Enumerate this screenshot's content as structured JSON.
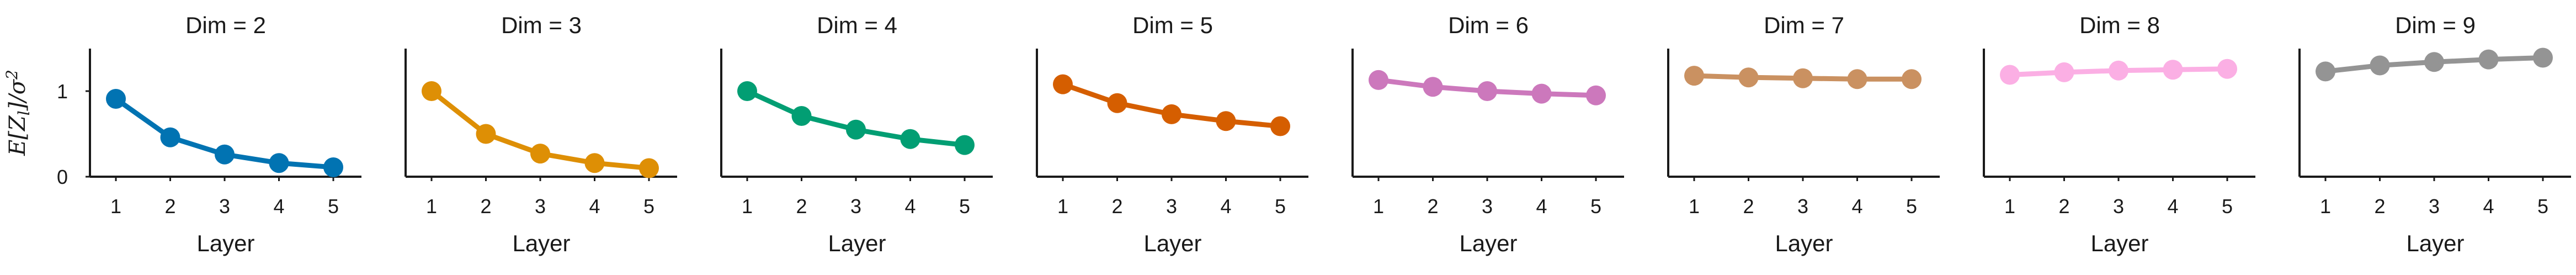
{
  "chart_data": [
    {
      "type": "line",
      "title": "Dim = 2",
      "xlabel": "Layer",
      "ylabel": "E[Z_l]/σ²",
      "x": [
        1,
        2,
        3,
        4,
        5
      ],
      "y": [
        0.91,
        0.46,
        0.26,
        0.16,
        0.11
      ],
      "color": "#0173b2",
      "ylim": [
        0,
        1.5
      ],
      "yticks": [
        "0",
        "1"
      ],
      "xticks": [
        "1",
        "2",
        "3",
        "4",
        "5"
      ]
    },
    {
      "type": "line",
      "title": "Dim = 3",
      "xlabel": "Layer",
      "x": [
        1,
        2,
        3,
        4,
        5
      ],
      "y": [
        1.0,
        0.5,
        0.27,
        0.16,
        0.1
      ],
      "color": "#de8f05",
      "ylim": [
        0,
        1.5
      ],
      "xticks": [
        "1",
        "2",
        "3",
        "4",
        "5"
      ]
    },
    {
      "type": "line",
      "title": "Dim = 4",
      "xlabel": "Layer",
      "x": [
        1,
        2,
        3,
        4,
        5
      ],
      "y": [
        1.0,
        0.71,
        0.55,
        0.44,
        0.37
      ],
      "color": "#029e73",
      "ylim": [
        0,
        1.5
      ],
      "xticks": [
        "1",
        "2",
        "3",
        "4",
        "5"
      ]
    },
    {
      "type": "line",
      "title": "Dim = 5",
      "xlabel": "Layer",
      "x": [
        1,
        2,
        3,
        4,
        5
      ],
      "y": [
        1.08,
        0.86,
        0.73,
        0.65,
        0.59
      ],
      "color": "#d55e00",
      "ylim": [
        0,
        1.5
      ],
      "xticks": [
        "1",
        "2",
        "3",
        "4",
        "5"
      ]
    },
    {
      "type": "line",
      "title": "Dim = 6",
      "xlabel": "Layer",
      "x": [
        1,
        2,
        3,
        4,
        5
      ],
      "y": [
        1.13,
        1.05,
        1.0,
        0.97,
        0.95
      ],
      "color": "#cc78bc",
      "ylim": [
        0,
        1.5
      ],
      "xticks": [
        "1",
        "2",
        "3",
        "4",
        "5"
      ]
    },
    {
      "type": "line",
      "title": "Dim = 7",
      "xlabel": "Layer",
      "x": [
        1,
        2,
        3,
        4,
        5
      ],
      "y": [
        1.18,
        1.16,
        1.15,
        1.14,
        1.14
      ],
      "color": "#ca9161",
      "ylim": [
        0,
        1.5
      ],
      "xticks": [
        "1",
        "2",
        "3",
        "4",
        "5"
      ]
    },
    {
      "type": "line",
      "title": "Dim = 8",
      "xlabel": "Layer",
      "x": [
        1,
        2,
        3,
        4,
        5
      ],
      "y": [
        1.19,
        1.22,
        1.24,
        1.25,
        1.26
      ],
      "color": "#fbafe4",
      "ylim": [
        0,
        1.5
      ],
      "xticks": [
        "1",
        "2",
        "3",
        "4",
        "5"
      ]
    },
    {
      "type": "line",
      "title": "Dim = 9",
      "xlabel": "Layer",
      "x": [
        1,
        2,
        3,
        4,
        5
      ],
      "y": [
        1.23,
        1.3,
        1.34,
        1.37,
        1.39
      ],
      "color": "#949494",
      "ylim": [
        0,
        1.5
      ],
      "xticks": [
        "1",
        "2",
        "3",
        "4",
        "5"
      ]
    }
  ]
}
